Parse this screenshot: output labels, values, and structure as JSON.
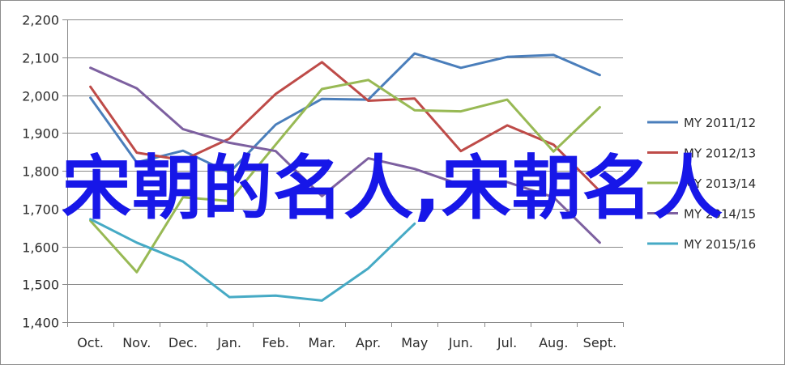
{
  "chart_data": {
    "type": "line",
    "categories": [
      "Oct.",
      "Nov.",
      "Dec.",
      "Jan.",
      "Feb.",
      "Mar.",
      "Apr.",
      "May",
      "Jun.",
      "Jul.",
      "Aug.",
      "Sept."
    ],
    "ylim": [
      1400,
      2200
    ],
    "yticks": [
      1400,
      1500,
      1600,
      1700,
      1800,
      1900,
      2000,
      2100,
      2200
    ],
    "ytick_labels": [
      "1,400",
      "1,500",
      "1,600",
      "1,700",
      "1,800",
      "1,900",
      "2,000",
      "2,100",
      "2,200"
    ],
    "grid": true,
    "legend_position": "right",
    "series": [
      {
        "name": "MY 2011/12",
        "color": "#4a7ebb",
        "values": [
          1993,
          1822,
          1853,
          1795,
          1922,
          1990,
          1988,
          2110,
          2072,
          2101,
          2106,
          2053
        ]
      },
      {
        "name": "MY 2012/13",
        "color": "#be4b48",
        "values": [
          2022,
          1848,
          1828,
          1885,
          2003,
          2087,
          1985,
          1991,
          1852,
          1920,
          1869,
          1746
        ]
      },
      {
        "name": "MY 2013/14",
        "color": "#98b954",
        "values": [
          1668,
          1532,
          1730,
          1720,
          1869,
          2016,
          2040,
          1960,
          1957,
          1988,
          1851,
          1968
        ]
      },
      {
        "name": "MY 2014/15",
        "color": "#7d60a0",
        "values": [
          2072,
          2018,
          1910,
          1874,
          1852,
          1733,
          1833,
          1805,
          1763,
          1770,
          1730,
          1610
        ]
      },
      {
        "name": "MY 2015/16",
        "color": "#46aac5",
        "values": [
          1672,
          1610,
          1560,
          1466,
          1470,
          1457,
          1542,
          1660,
          null,
          null,
          null,
          null
        ]
      }
    ]
  },
  "overlay_text": "宋朝的名人,宋朝名人"
}
